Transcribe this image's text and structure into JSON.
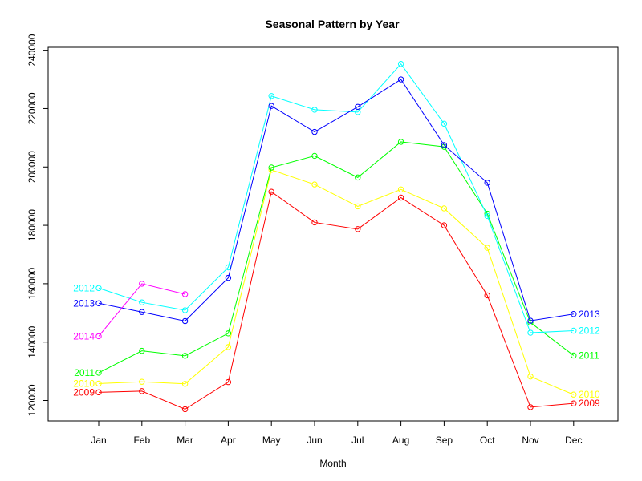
{
  "chart_data": {
    "type": "line",
    "title": "Seasonal Pattern by Year",
    "xlabel": "Month",
    "ylabel": "",
    "categories": [
      "Jan",
      "Feb",
      "Mar",
      "Apr",
      "May",
      "Jun",
      "Jul",
      "Aug",
      "Sep",
      "Oct",
      "Nov",
      "Dec"
    ],
    "ylim": [
      113000,
      241000
    ],
    "yticks": [
      120000,
      140000,
      160000,
      180000,
      200000,
      220000,
      240000
    ],
    "grid": false,
    "legend": "none",
    "series": [
      {
        "name": "2009",
        "color": "#ff0000",
        "values": [
          122800,
          123200,
          117000,
          126300,
          191500,
          181000,
          178700,
          189500,
          180000,
          156000,
          117700,
          119000
        ]
      },
      {
        "name": "2010",
        "color": "#ffff00",
        "values": [
          125800,
          126400,
          125700,
          138300,
          199000,
          194000,
          186500,
          192300,
          185800,
          172300,
          128200,
          122000
        ]
      },
      {
        "name": "2011",
        "color": "#00ff00",
        "values": [
          129500,
          137000,
          135300,
          143000,
          199800,
          203800,
          196400,
          208600,
          206900,
          184000,
          146700,
          135400
        ]
      },
      {
        "name": "2012",
        "color": "#00ffff",
        "values": [
          158500,
          153600,
          150900,
          165600,
          224300,
          219600,
          218800,
          235300,
          214800,
          183200,
          143200,
          143900
        ]
      },
      {
        "name": "2013",
        "color": "#0000ff",
        "values": [
          153300,
          150300,
          147200,
          162000,
          220900,
          212000,
          220600,
          230000,
          207500,
          194600,
          147300,
          149600
        ]
      },
      {
        "name": "2014",
        "color": "#ff00ff",
        "values": [
          142000,
          160000,
          156400,
          null,
          null,
          null,
          null,
          null,
          null,
          null,
          null,
          null
        ]
      }
    ],
    "start_labels": [
      "2009",
      "2010",
      "2011",
      "2012",
      "2013",
      "2014"
    ],
    "end_labels": [
      "2009",
      "2010",
      "2011",
      "2012",
      "2013"
    ]
  }
}
